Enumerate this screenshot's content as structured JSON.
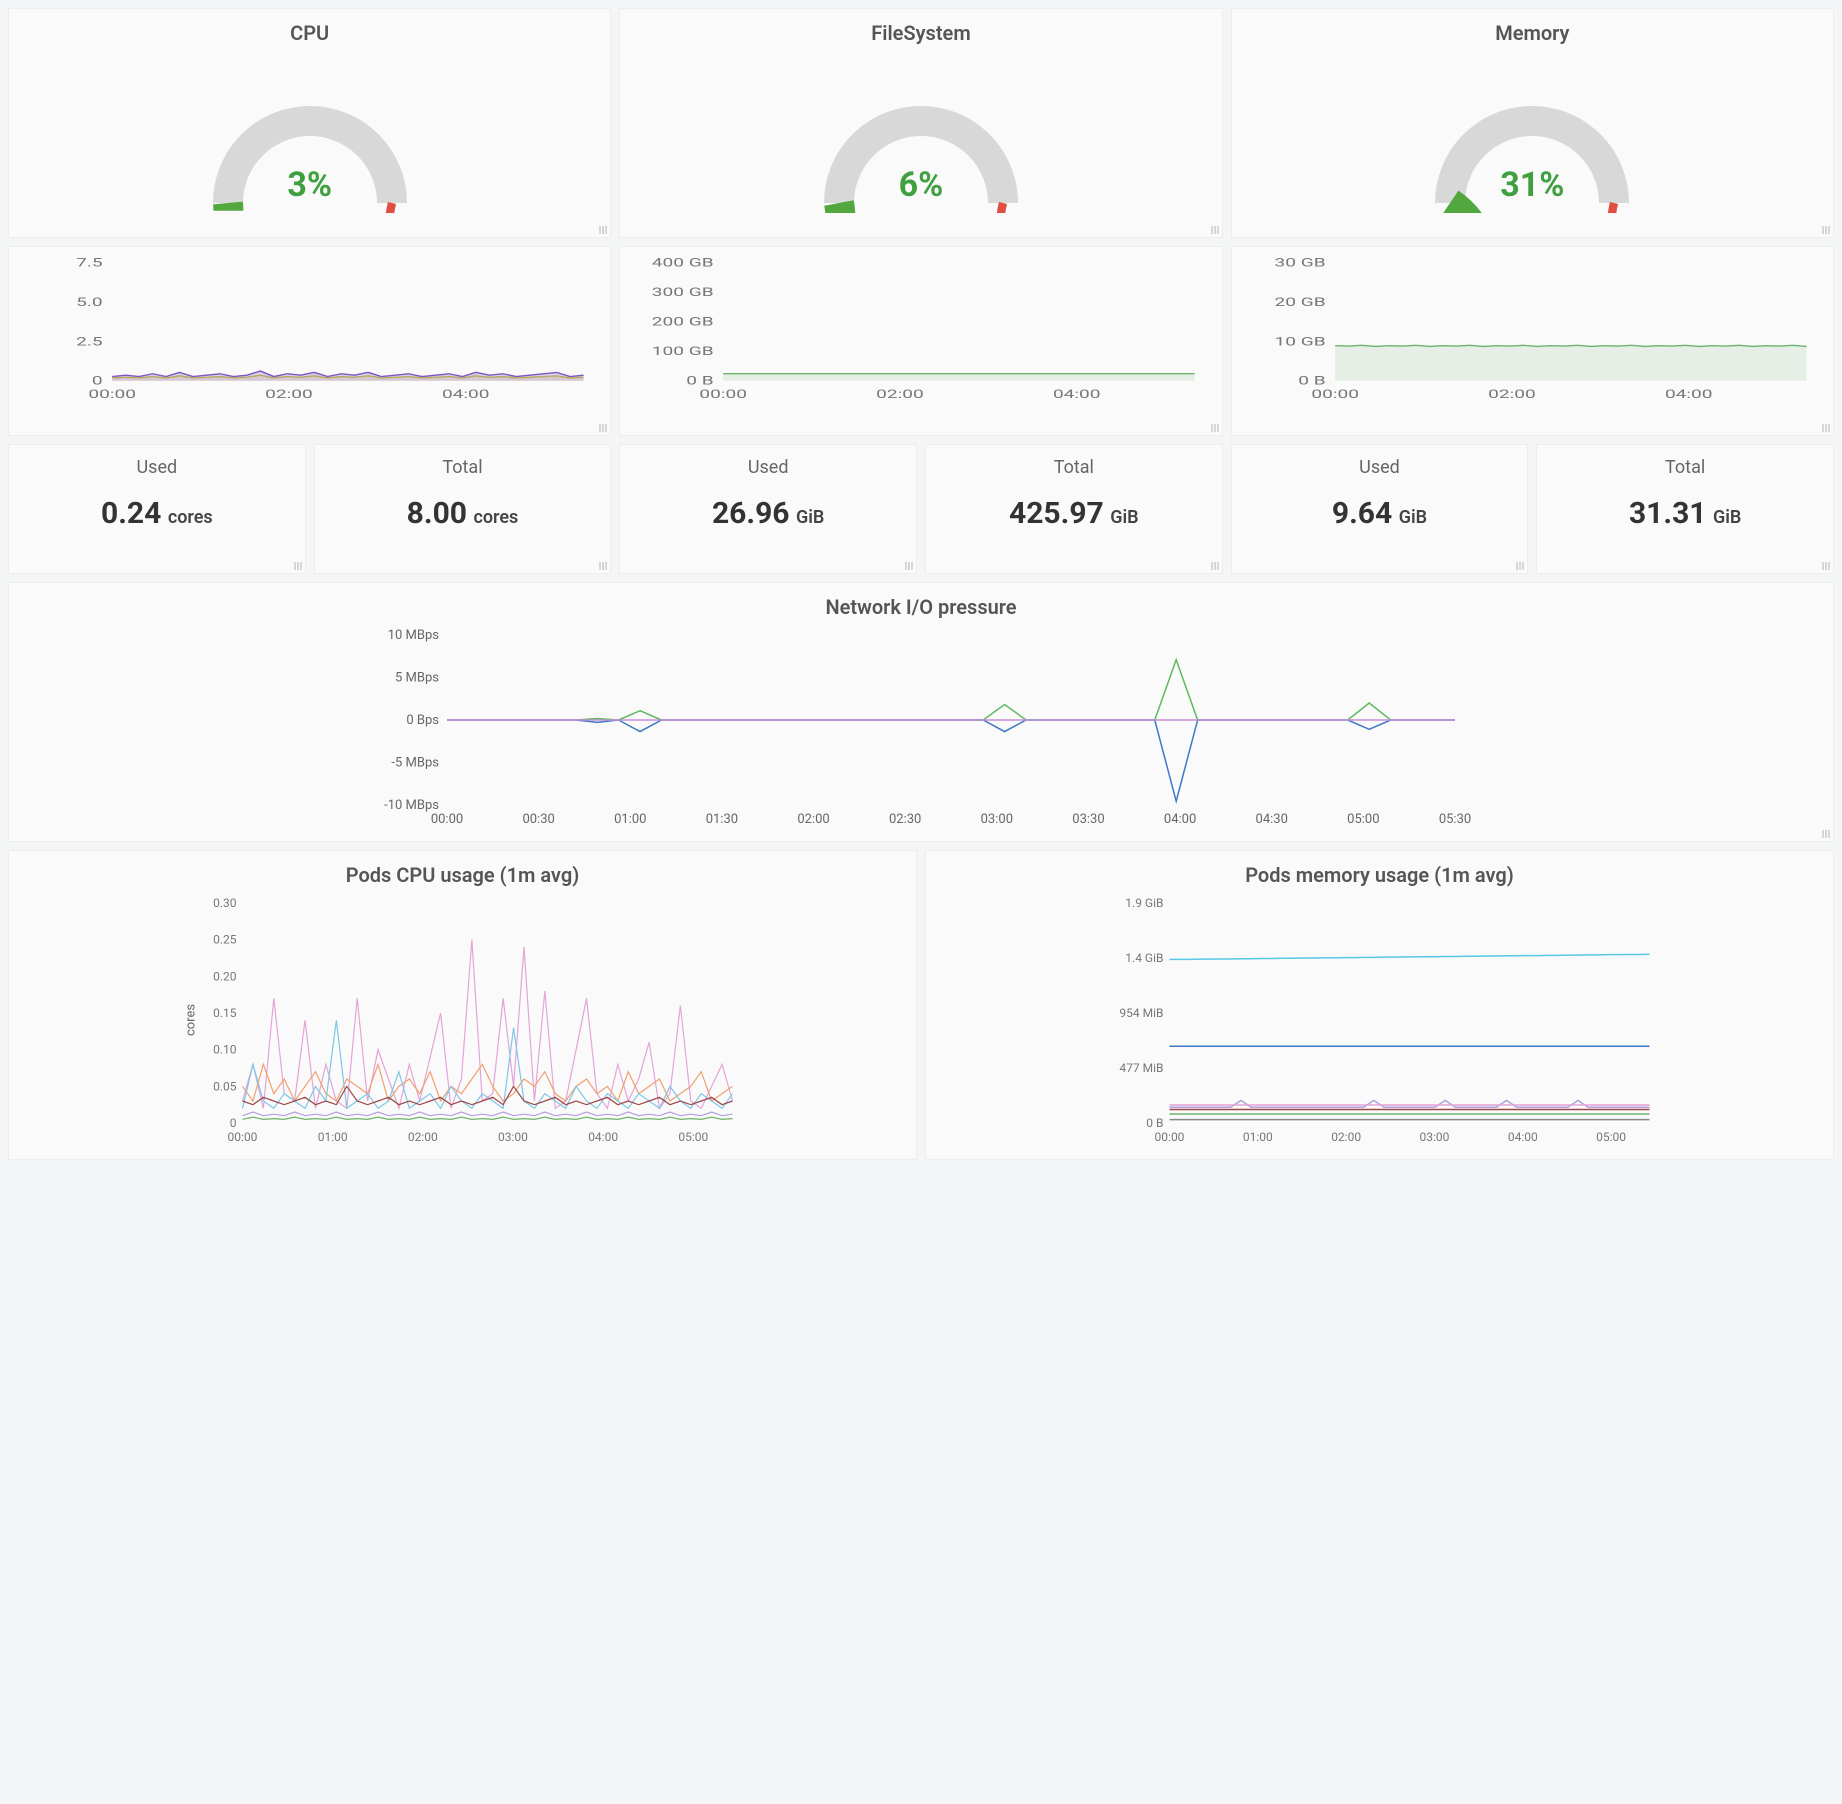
{
  "colors": {
    "bg_panel": "#fafafa",
    "border": "#eceded",
    "gauge_track": "#d8d8d8",
    "gauge_green": "#52a83f",
    "gauge_orange": "#f2a240",
    "gauge_red": "#e24d42",
    "text_value": "#40a040",
    "grid": "#e8e8e8",
    "axis_text": "#777"
  },
  "gauges": [
    {
      "title": "CPU",
      "percent": 3,
      "display": "3%"
    },
    {
      "title": "FileSystem",
      "percent": 6,
      "display": "6%"
    },
    {
      "title": "Memory",
      "percent": 31,
      "display": "31%"
    }
  ],
  "mini_charts": [
    {
      "y_ticks": [
        "0",
        "2.5",
        "5.0",
        "7.5"
      ],
      "y_max": 8.5,
      "x_ticks": [
        "00:00",
        "02:00",
        "04:00"
      ],
      "series": [
        {
          "color": "#7e57c2",
          "fill": "#7e57c240",
          "data": [
            0.3,
            0.4,
            0.3,
            0.5,
            0.3,
            0.6,
            0.3,
            0.4,
            0.5,
            0.3,
            0.4,
            0.7,
            0.3,
            0.5,
            0.4,
            0.6,
            0.3,
            0.5,
            0.4,
            0.6,
            0.3,
            0.4,
            0.5,
            0.3,
            0.4,
            0.5,
            0.3,
            0.6,
            0.4,
            0.5,
            0.3,
            0.4,
            0.5,
            0.6,
            0.3,
            0.4
          ]
        },
        {
          "color": "#b8a85e",
          "fill": "#b8a85e30",
          "data": [
            0.2,
            0.25,
            0.2,
            0.3,
            0.2,
            0.35,
            0.2,
            0.25,
            0.3,
            0.2,
            0.25,
            0.4,
            0.2,
            0.3,
            0.25,
            0.35,
            0.2,
            0.3,
            0.25,
            0.35,
            0.2,
            0.25,
            0.3,
            0.2,
            0.25,
            0.3,
            0.2,
            0.35,
            0.25,
            0.3,
            0.2,
            0.25,
            0.3,
            0.35,
            0.2,
            0.25
          ]
        }
      ]
    },
    {
      "y_ticks": [
        "0 B",
        "100 GB",
        "200 GB",
        "300 GB",
        "400 GB"
      ],
      "y_max": 450,
      "x_ticks": [
        "00:00",
        "02:00",
        "04:00"
      ],
      "series": [
        {
          "color": "#6cb36c",
          "fill": "#6cb36c25",
          "data": [
            27,
            27,
            27,
            27,
            27,
            27,
            27,
            27,
            27,
            27,
            27,
            27,
            27,
            27,
            27,
            27,
            27,
            27,
            27,
            27,
            27,
            27,
            27,
            27,
            27,
            27,
            27,
            27,
            27,
            27,
            27,
            27,
            27,
            27,
            27,
            27
          ]
        }
      ]
    },
    {
      "y_ticks": [
        "0 B",
        "10 GB",
        "20 GB",
        "30 GB"
      ],
      "y_max": 33,
      "x_ticks": [
        "00:00",
        "02:00",
        "04:00"
      ],
      "series": [
        {
          "color": "#6cb36c",
          "fill": "#6cb36c25",
          "data": [
            9.8,
            9.7,
            9.9,
            9.6,
            9.8,
            9.7,
            9.9,
            9.6,
            9.8,
            9.7,
            9.9,
            9.6,
            9.8,
            9.7,
            9.9,
            9.6,
            9.8,
            9.7,
            9.9,
            9.6,
            9.8,
            9.7,
            9.9,
            9.6,
            9.8,
            9.7,
            9.9,
            9.6,
            9.8,
            9.7,
            9.9,
            9.6,
            9.8,
            9.7,
            9.9,
            9.6
          ]
        }
      ]
    }
  ],
  "stats": [
    {
      "title": "Used",
      "value": "0.24",
      "unit": "cores"
    },
    {
      "title": "Total",
      "value": "8.00",
      "unit": "cores"
    },
    {
      "title": "Used",
      "value": "26.96",
      "unit": "GiB"
    },
    {
      "title": "Total",
      "value": "425.97",
      "unit": "GiB"
    },
    {
      "title": "Used",
      "value": "9.64",
      "unit": "GiB"
    },
    {
      "title": "Total",
      "value": "31.31",
      "unit": "GiB"
    }
  ],
  "network_chart": {
    "title": "Network I/O pressure",
    "y_ticks": [
      "-10 MBps",
      "-5 MBps",
      "0 Bps",
      "5 MBps",
      "10 MBps"
    ],
    "y_min": -11,
    "y_max": 11,
    "x_ticks": [
      "00:00",
      "00:30",
      "01:00",
      "01:30",
      "02:00",
      "02:30",
      "03:00",
      "03:30",
      "04:00",
      "04:30",
      "05:00",
      "05:30"
    ],
    "series": [
      {
        "color": "#60b860",
        "data": [
          0,
          0,
          0,
          0,
          0,
          0,
          0,
          0.2,
          0,
          1.2,
          0,
          0,
          0,
          0,
          0,
          0,
          0,
          0,
          0,
          0,
          0,
          0,
          0,
          0,
          0,
          0,
          2,
          0,
          0,
          0,
          0,
          0,
          0,
          0,
          7.8,
          0,
          0,
          0,
          0,
          0,
          0,
          0,
          0,
          2.2,
          0,
          0,
          0,
          0
        ]
      },
      {
        "color": "#3f78c6",
        "data": [
          0,
          0,
          0,
          0,
          0,
          0,
          0,
          -0.3,
          0,
          -1.5,
          0,
          0,
          0,
          0,
          0,
          0,
          0,
          0,
          0,
          0,
          0,
          0,
          0,
          0,
          0,
          0,
          -1.5,
          0,
          0,
          0,
          0,
          0,
          0,
          0,
          -10.5,
          0,
          0,
          0,
          0,
          0,
          0,
          0,
          0,
          -1.2,
          0,
          0,
          0,
          0
        ]
      },
      {
        "color": "#c48fd8",
        "data": [
          0,
          0,
          0,
          0,
          0,
          0,
          0,
          0,
          0,
          0,
          0,
          0,
          0,
          0,
          0,
          0,
          0,
          0,
          0,
          0,
          0,
          0,
          0,
          0,
          0,
          0,
          0,
          0,
          0,
          0,
          0,
          0,
          0,
          0,
          0,
          0,
          0,
          0,
          0,
          0,
          0,
          0,
          0,
          0,
          0,
          0,
          0,
          0
        ]
      }
    ]
  },
  "pods_cpu": {
    "title": "Pods CPU usage (1m avg)",
    "ylabel": "cores",
    "y_ticks": [
      "0",
      "0.05",
      "0.10",
      "0.15",
      "0.20",
      "0.25",
      "0.30"
    ],
    "y_max": 0.3,
    "x_ticks": [
      "00:00",
      "01:00",
      "02:00",
      "03:00",
      "04:00",
      "05:00"
    ],
    "series": [
      {
        "color": "#e6a3d8",
        "data": [
          0.03,
          0.08,
          0.02,
          0.17,
          0.04,
          0.03,
          0.14,
          0.02,
          0.08,
          0.03,
          0.02,
          0.17,
          0.03,
          0.1,
          0.06,
          0.02,
          0.08,
          0.03,
          0.09,
          0.15,
          0.02,
          0.06,
          0.25,
          0.03,
          0.04,
          0.17,
          0.05,
          0.24,
          0.03,
          0.18,
          0.02,
          0.03,
          0.1,
          0.17,
          0.04,
          0.02,
          0.08,
          0.03,
          0.06,
          0.11,
          0.02,
          0.04,
          0.16,
          0.03,
          0.02,
          0.05,
          0.08,
          0.03
        ]
      },
      {
        "color": "#f0a070",
        "data": [
          0.05,
          0.03,
          0.08,
          0.04,
          0.06,
          0.03,
          0.05,
          0.07,
          0.04,
          0.03,
          0.06,
          0.05,
          0.04,
          0.08,
          0.03,
          0.05,
          0.06,
          0.04,
          0.07,
          0.03,
          0.05,
          0.04,
          0.06,
          0.08,
          0.05,
          0.03,
          0.04,
          0.06,
          0.05,
          0.07,
          0.04,
          0.03,
          0.05,
          0.06,
          0.04,
          0.05,
          0.03,
          0.07,
          0.04,
          0.05,
          0.06,
          0.03,
          0.04,
          0.05,
          0.07,
          0.03,
          0.04,
          0.05
        ]
      },
      {
        "color": "#7bc8e8",
        "data": [
          0.02,
          0.08,
          0.03,
          0.02,
          0.04,
          0.03,
          0.02,
          0.05,
          0.03,
          0.14,
          0.02,
          0.03,
          0.04,
          0.02,
          0.03,
          0.07,
          0.02,
          0.03,
          0.04,
          0.02,
          0.05,
          0.03,
          0.02,
          0.04,
          0.03,
          0.02,
          0.13,
          0.03,
          0.02,
          0.04,
          0.03,
          0.02,
          0.05,
          0.03,
          0.02,
          0.04,
          0.03,
          0.02,
          0.04,
          0.03,
          0.02,
          0.05,
          0.03,
          0.02,
          0.04,
          0.03,
          0.02,
          0.04
        ]
      },
      {
        "color": "#9e4747",
        "data": [
          0.03,
          0.025,
          0.035,
          0.03,
          0.025,
          0.03,
          0.035,
          0.025,
          0.03,
          0.025,
          0.05,
          0.03,
          0.025,
          0.03,
          0.035,
          0.025,
          0.03,
          0.025,
          0.03,
          0.035,
          0.025,
          0.03,
          0.025,
          0.03,
          0.035,
          0.025,
          0.05,
          0.03,
          0.025,
          0.03,
          0.035,
          0.025,
          0.03,
          0.025,
          0.03,
          0.035,
          0.025,
          0.03,
          0.025,
          0.03,
          0.035,
          0.025,
          0.03,
          0.025,
          0.03,
          0.035,
          0.025,
          0.03
        ]
      },
      {
        "color": "#b0a0e0",
        "data": [
          0.01,
          0.015,
          0.01,
          0.012,
          0.01,
          0.015,
          0.01,
          0.012,
          0.01,
          0.015,
          0.01,
          0.012,
          0.01,
          0.015,
          0.01,
          0.012,
          0.01,
          0.015,
          0.01,
          0.012,
          0.01,
          0.015,
          0.01,
          0.012,
          0.01,
          0.015,
          0.01,
          0.012,
          0.01,
          0.015,
          0.01,
          0.012,
          0.01,
          0.015,
          0.01,
          0.012,
          0.01,
          0.015,
          0.01,
          0.012,
          0.01,
          0.015,
          0.01,
          0.012,
          0.01,
          0.015,
          0.01,
          0.012
        ]
      },
      {
        "color": "#6cb36c",
        "data": [
          0.005,
          0.008,
          0.005,
          0.006,
          0.005,
          0.008,
          0.005,
          0.006,
          0.005,
          0.008,
          0.005,
          0.006,
          0.005,
          0.008,
          0.005,
          0.006,
          0.005,
          0.008,
          0.005,
          0.006,
          0.005,
          0.008,
          0.005,
          0.006,
          0.005,
          0.008,
          0.005,
          0.006,
          0.005,
          0.008,
          0.005,
          0.006,
          0.005,
          0.008,
          0.005,
          0.006,
          0.005,
          0.008,
          0.005,
          0.006,
          0.005,
          0.008,
          0.005,
          0.006,
          0.005,
          0.008,
          0.005,
          0.006
        ]
      }
    ]
  },
  "pods_mem": {
    "title": "Pods memory usage (1m avg)",
    "y_ticks": [
      "0 B",
      "477 MiB",
      "954 MiB",
      "1.4 GiB",
      "1.9 GiB"
    ],
    "y_max": 1950,
    "x_ticks": [
      "00:00",
      "01:00",
      "02:00",
      "03:00",
      "04:00",
      "05:00"
    ],
    "series": [
      {
        "color": "#58c8e8",
        "data": [
          1450,
          1450,
          1450,
          1452,
          1452,
          1454,
          1454,
          1456,
          1456,
          1458,
          1458,
          1460,
          1460,
          1462,
          1462,
          1464,
          1464,
          1466,
          1466,
          1468,
          1468,
          1470,
          1470,
          1472,
          1472,
          1474,
          1474,
          1476,
          1476,
          1478,
          1478,
          1480,
          1480,
          1482,
          1482,
          1484,
          1484,
          1486,
          1486,
          1488,
          1488,
          1490,
          1490,
          1492,
          1492,
          1494,
          1494,
          1496
        ]
      },
      {
        "color": "#3f78c6",
        "data": [
          680,
          680,
          680,
          680,
          680,
          680,
          680,
          680,
          680,
          680,
          680,
          680,
          680,
          680,
          680,
          680,
          680,
          680,
          680,
          680,
          680,
          680,
          680,
          680,
          680,
          680,
          680,
          680,
          680,
          680,
          680,
          680,
          680,
          680,
          680,
          680,
          680,
          680,
          680,
          680,
          680,
          680,
          680,
          680,
          680,
          680,
          680,
          680
        ]
      },
      {
        "color": "#b0a0e0",
        "data": [
          140,
          140,
          140,
          140,
          140,
          140,
          140,
          200,
          140,
          140,
          140,
          140,
          140,
          140,
          140,
          140,
          140,
          140,
          140,
          140,
          200,
          140,
          140,
          140,
          140,
          140,
          140,
          200,
          140,
          140,
          140,
          140,
          140,
          200,
          140,
          140,
          140,
          140,
          140,
          140,
          200,
          140,
          140,
          140,
          140,
          140,
          140,
          140
        ]
      },
      {
        "color": "#e6a3d8",
        "data": [
          160,
          160,
          160,
          160,
          160,
          160,
          160,
          160,
          160,
          160,
          160,
          160,
          160,
          160,
          160,
          160,
          160,
          160,
          160,
          160,
          160,
          160,
          160,
          160,
          160,
          160,
          160,
          160,
          160,
          160,
          160,
          160,
          160,
          160,
          160,
          160,
          160,
          160,
          160,
          160,
          160,
          160,
          160,
          160,
          160,
          160,
          160,
          160
        ]
      },
      {
        "color": "#9e4747",
        "data": [
          120,
          120,
          120,
          120,
          120,
          120,
          120,
          120,
          120,
          120,
          120,
          120,
          120,
          120,
          120,
          120,
          120,
          120,
          120,
          120,
          120,
          120,
          120,
          120,
          120,
          120,
          120,
          120,
          120,
          120,
          120,
          120,
          120,
          120,
          120,
          120,
          120,
          120,
          120,
          120,
          120,
          120,
          120,
          120,
          120,
          120,
          120,
          120
        ]
      },
      {
        "color": "#6cb36c",
        "data": [
          80,
          80,
          80,
          80,
          80,
          80,
          80,
          80,
          80,
          80,
          80,
          80,
          80,
          80,
          80,
          80,
          80,
          80,
          80,
          80,
          80,
          80,
          80,
          80,
          80,
          80,
          80,
          80,
          80,
          80,
          80,
          80,
          80,
          80,
          80,
          80,
          80,
          80,
          80,
          80,
          80,
          80,
          80,
          80,
          80,
          80,
          80,
          80
        ]
      },
      {
        "color": "#888",
        "data": [
          30,
          30,
          30,
          30,
          30,
          30,
          30,
          30,
          30,
          30,
          30,
          30,
          30,
          30,
          30,
          30,
          30,
          30,
          30,
          30,
          30,
          30,
          30,
          30,
          30,
          30,
          30,
          30,
          30,
          30,
          30,
          30,
          30,
          30,
          30,
          30,
          30,
          30,
          30,
          30,
          30,
          30,
          30,
          30,
          30,
          30,
          30,
          30
        ]
      }
    ]
  }
}
